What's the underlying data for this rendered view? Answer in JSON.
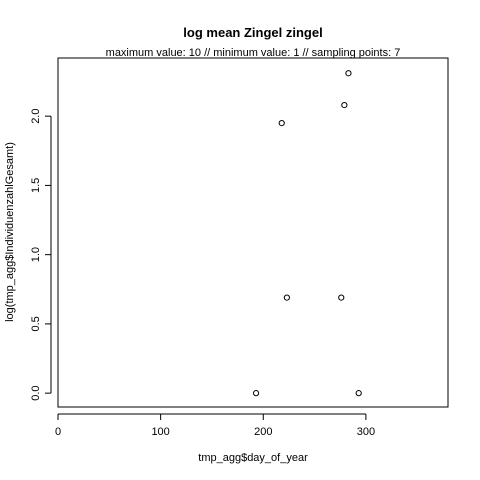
{
  "chart_data": {
    "type": "scatter",
    "title": "log mean Zingel zingel",
    "subtitle": "maximum value: 10  //  minimum value: 1  // sampling points: 7",
    "xlabel": "tmp_agg$day_of_year",
    "ylabel": "log(tmp_agg$IndividuenzahlGesamt)",
    "xlim": [
      0,
      380
    ],
    "ylim": [
      -0.1,
      2.42
    ],
    "x_ticks": [
      0,
      100,
      200,
      300
    ],
    "y_ticks": [
      0.0,
      0.5,
      1.0,
      1.5,
      2.0
    ],
    "x_tick_labels": [
      "0",
      "100",
      "200",
      "300"
    ],
    "y_tick_labels": [
      "0.0",
      "0.5",
      "1.0",
      "1.5",
      "2.0"
    ],
    "points": [
      {
        "x": 193,
        "y": 0.0
      },
      {
        "x": 218,
        "y": 1.95
      },
      {
        "x": 223,
        "y": 0.69
      },
      {
        "x": 276,
        "y": 0.69
      },
      {
        "x": 279,
        "y": 2.08
      },
      {
        "x": 283,
        "y": 2.31
      },
      {
        "x": 293,
        "y": 0.0
      }
    ],
    "grid": false,
    "marker": "open-circle",
    "colors": {
      "point": "#000000",
      "axis": "#000000",
      "background": "#ffffff"
    }
  }
}
